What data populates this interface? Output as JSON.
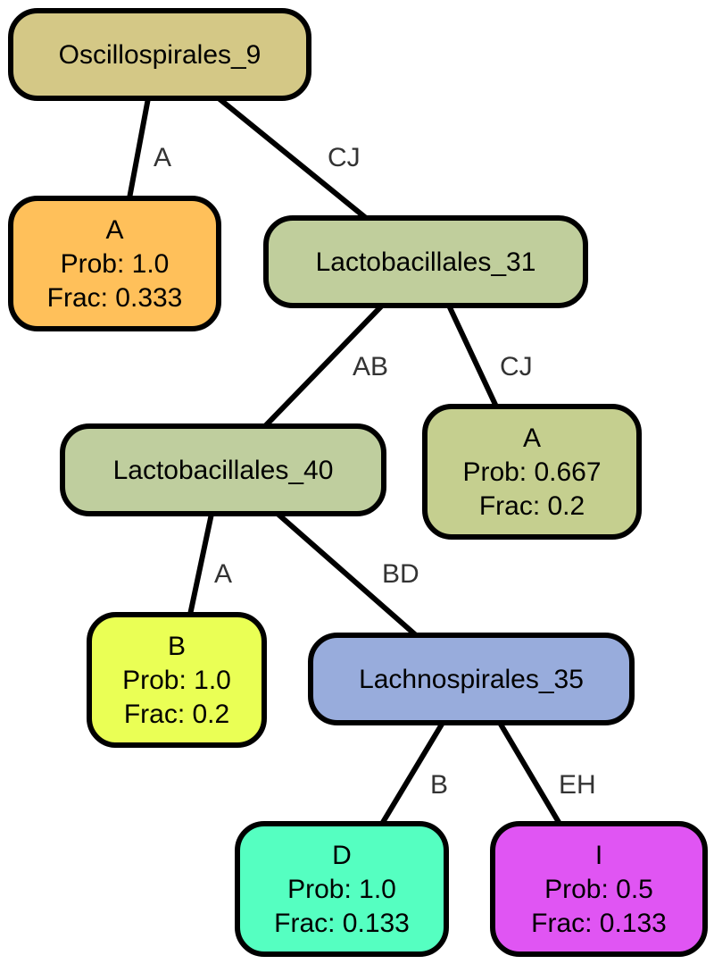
{
  "nodes": [
    {
      "id": "n_osc9",
      "lines": [
        "Oscillospirales_9"
      ],
      "color": "#d4c886"
    },
    {
      "id": "n_a1",
      "lines": [
        "A",
        "Prob: 1.0",
        "Frac: 0.333"
      ],
      "color": "#ffc05a"
    },
    {
      "id": "n_lac31",
      "lines": [
        "Lactobacillales_31"
      ],
      "color": "#c0ce9c"
    },
    {
      "id": "n_lac40",
      "lines": [
        "Lactobacillales_40"
      ],
      "color": "#bfce9e"
    },
    {
      "id": "n_a2",
      "lines": [
        "A",
        "Prob: 0.667",
        "Frac: 0.2"
      ],
      "color": "#c5cf8f"
    },
    {
      "id": "n_b",
      "lines": [
        "B",
        "Prob: 1.0",
        "Frac: 0.2"
      ],
      "color": "#eaff55"
    },
    {
      "id": "n_lach35",
      "lines": [
        "Lachnospirales_35"
      ],
      "color": "#98acdc"
    },
    {
      "id": "n_d",
      "lines": [
        "D",
        "Prob: 1.0",
        "Frac: 0.133"
      ],
      "color": "#55ffc1"
    },
    {
      "id": "n_i",
      "lines": [
        "I",
        "Prob: 0.5",
        "Frac: 0.133"
      ],
      "color": "#e055f3"
    }
  ],
  "edges": [
    {
      "from": "n_osc9",
      "to": "n_a1",
      "label": "A"
    },
    {
      "from": "n_osc9",
      "to": "n_lac31",
      "label": "CJ"
    },
    {
      "from": "n_lac31",
      "to": "n_lac40",
      "label": "AB"
    },
    {
      "from": "n_lac31",
      "to": "n_a2",
      "label": "CJ"
    },
    {
      "from": "n_lac40",
      "to": "n_b",
      "label": "A"
    },
    {
      "from": "n_lac40",
      "to": "n_lach35",
      "label": "BD"
    },
    {
      "from": "n_lach35",
      "to": "n_d",
      "label": "B"
    },
    {
      "from": "n_lach35",
      "to": "n_i",
      "label": "EH"
    }
  ]
}
